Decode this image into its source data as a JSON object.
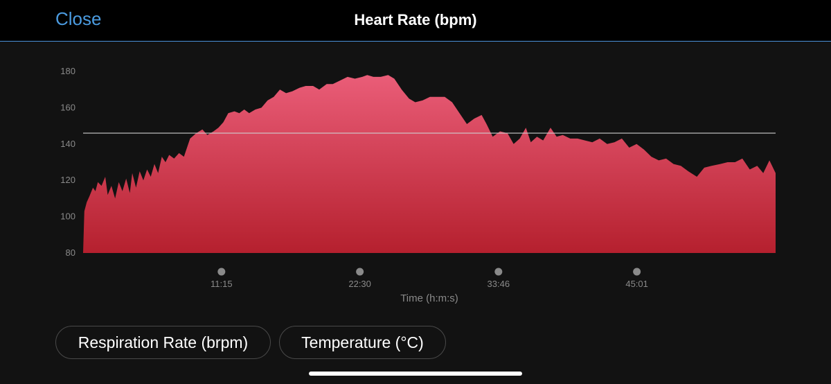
{
  "header": {
    "close_label": "Close",
    "title": "Heart Rate (bpm)"
  },
  "chart_data": {
    "type": "area",
    "title": "Heart Rate (bpm)",
    "xlabel": "Time (h:m:s)",
    "ylabel": "",
    "ylim": [
      80,
      180
    ],
    "yticks": [
      180,
      160,
      140,
      120,
      100,
      80
    ],
    "xticks": [
      {
        "t": 11.25,
        "label": "11:15"
      },
      {
        "t": 22.5,
        "label": "22:30"
      },
      {
        "t": 33.77,
        "label": "33:46"
      },
      {
        "t": 45.02,
        "label": "45:01"
      }
    ],
    "xlim": [
      0,
      56.3
    ],
    "average_line": 146,
    "grid": false,
    "colors": {
      "fill_top": "#ea5d78",
      "fill_bottom": "#b5202e",
      "average_line": "#cfcfcf"
    },
    "series": [
      {
        "x": [
          0.0,
          0.1,
          0.3,
          0.5,
          0.8,
          1.0,
          1.2,
          1.5,
          1.8,
          2.0,
          2.3,
          2.6,
          2.9,
          3.2,
          3.5,
          3.8,
          4.0,
          4.3,
          4.6,
          4.9,
          5.2,
          5.5,
          5.8,
          6.1,
          6.4,
          6.7,
          7.0,
          7.4,
          7.8,
          8.2,
          8.7,
          9.2,
          9.7,
          10.1,
          10.6,
          11.0,
          11.4,
          11.8,
          12.3,
          12.7,
          13.1,
          13.5,
          14.0,
          14.5,
          15.0,
          15.5,
          16.0,
          16.5,
          17.0,
          17.6,
          18.1,
          18.7,
          19.2,
          19.8,
          20.3,
          20.9,
          21.5,
          22.1,
          22.7,
          23.1,
          23.6,
          24.2,
          24.8,
          25.3,
          25.9,
          26.5,
          27.0,
          27.6,
          28.2,
          28.8,
          29.4,
          30.0,
          30.6,
          31.2,
          31.8,
          32.4,
          32.8,
          33.3,
          33.9,
          34.5,
          35.0,
          35.5,
          36.0,
          36.4,
          36.9,
          37.4,
          38.0,
          38.5,
          39.0,
          39.6,
          40.2,
          40.8,
          41.4,
          42.0,
          42.6,
          43.2,
          43.8,
          44.4,
          45.0,
          45.6,
          46.2,
          46.8,
          47.4,
          48.0,
          48.6,
          49.2,
          49.9,
          50.5,
          51.1,
          51.8,
          52.4,
          53.0,
          53.6,
          54.2,
          54.8,
          55.3,
          55.8,
          56.3
        ],
        "values": [
          80,
          103,
          108,
          111,
          116,
          114,
          119,
          117,
          122,
          112,
          117,
          110,
          119,
          114,
          121,
          113,
          124,
          116,
          125,
          120,
          126,
          122,
          129,
          124,
          133,
          130,
          134,
          132,
          135,
          133,
          143,
          146,
          148,
          145,
          147,
          149,
          152,
          157,
          158,
          157,
          159,
          157,
          159,
          160,
          164,
          166,
          170,
          168,
          169,
          171,
          172,
          172,
          170,
          173,
          173,
          175,
          177,
          176,
          177,
          178,
          177,
          177,
          178,
          176,
          170,
          165,
          163,
          164,
          166,
          166,
          166,
          163,
          157,
          151,
          154,
          156,
          151,
          144,
          147,
          146,
          140,
          143,
          149,
          141,
          144,
          142,
          149,
          144,
          145,
          143,
          143,
          142,
          141,
          143,
          140,
          141,
          143,
          138,
          140,
          137,
          133,
          131,
          132,
          129,
          128,
          125,
          122,
          127,
          128,
          129,
          130,
          130,
          132,
          126,
          128,
          124,
          131,
          124
        ]
      }
    ]
  },
  "buttons": {
    "respiration_label": "Respiration Rate (brpm)",
    "temperature_label": "Temperature (°C)"
  }
}
